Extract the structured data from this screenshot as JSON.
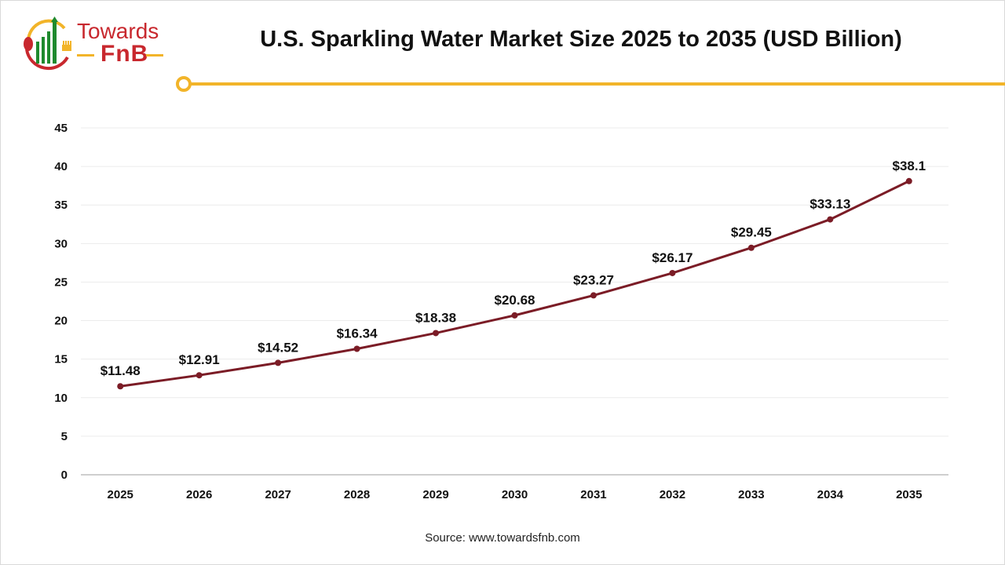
{
  "logo": {
    "line1": "Towards",
    "line2": "FnB"
  },
  "colors": {
    "line": "#7b1c26",
    "accent": "#f2b429",
    "grid": "#ececec",
    "logo_red": "#c8282e",
    "logo_green": "#1f8a2e"
  },
  "source": "Source: www.towardsfnb.com",
  "chart_data": {
    "type": "line",
    "title": "U.S. Sparkling Water Market Size 2025 to 2035 (USD Billion)",
    "xlabel": "",
    "ylabel": "",
    "categories": [
      "2025",
      "2026",
      "2027",
      "2028",
      "2029",
      "2030",
      "2031",
      "2032",
      "2033",
      "2034",
      "2035"
    ],
    "values": [
      11.48,
      12.91,
      14.52,
      16.34,
      18.38,
      20.68,
      23.27,
      26.17,
      29.45,
      33.13,
      38.1
    ],
    "data_labels": [
      "$11.48",
      "$12.91",
      "$14.52",
      "$16.34",
      "$18.38",
      "$20.68",
      "$23.27",
      "$26.17",
      "$29.45",
      "$33.13",
      "$38.1"
    ],
    "ylim": [
      0,
      45
    ],
    "yticks": [
      "0",
      "5",
      "10",
      "15",
      "20",
      "25",
      "30",
      "35",
      "40",
      "45"
    ],
    "grid": true,
    "legend": "none"
  }
}
